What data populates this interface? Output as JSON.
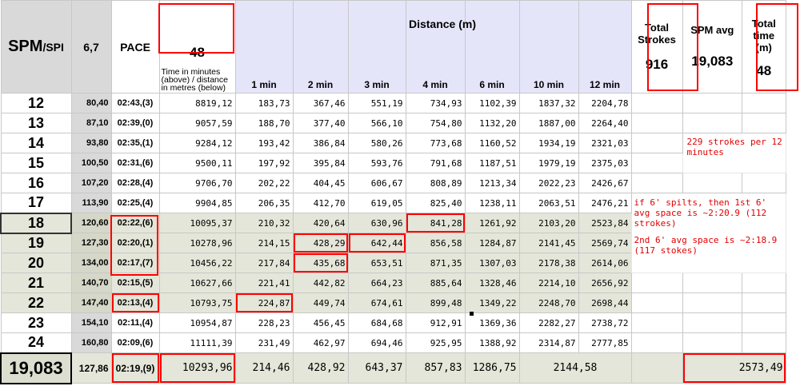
{
  "header": {
    "spm_main": "SPM",
    "spm_sub": "/SPI",
    "spi_value": "6,7",
    "pace_label": "PACE",
    "time_value": "48",
    "time_desc": "Time in minutes (above) / distance in metres (below)",
    "distance_label": "Distance (m)",
    "minutes": [
      "1 min",
      "2 min",
      "3 min",
      "4 min",
      "6 min",
      "10 min",
      "12 min"
    ],
    "total_strokes_label": "Total Strokes",
    "total_strokes_value": "916",
    "spm_avg_label": "SPM avg",
    "spm_avg_value": "19,083",
    "total_time_label": "Total time (m)",
    "total_time_value": "48"
  },
  "rows": [
    {
      "spm": "12",
      "spi": "80,40",
      "pace": "02:43,(3)",
      "total": "8819,12",
      "d": [
        "183,73",
        "367,46",
        "551,19",
        "734,93",
        "1102,39",
        "1837,32",
        "2204,78"
      ]
    },
    {
      "spm": "13",
      "spi": "87,10",
      "pace": "02:39,(0)",
      "total": "9057,59",
      "d": [
        "188,70",
        "377,40",
        "566,10",
        "754,80",
        "1132,20",
        "1887,00",
        "2264,40"
      ]
    },
    {
      "spm": "14",
      "spi": "93,80",
      "pace": "02:35,(1)",
      "total": "9284,12",
      "d": [
        "193,42",
        "386,84",
        "580,26",
        "773,68",
        "1160,52",
        "1934,19",
        "2321,03"
      ]
    },
    {
      "spm": "15",
      "spi": "100,50",
      "pace": "02:31,(6)",
      "total": "9500,11",
      "d": [
        "197,92",
        "395,84",
        "593,76",
        "791,68",
        "1187,51",
        "1979,19",
        "2375,03"
      ]
    },
    {
      "spm": "16",
      "spi": "107,20",
      "pace": "02:28,(4)",
      "total": "9706,70",
      "d": [
        "202,22",
        "404,45",
        "606,67",
        "808,89",
        "1213,34",
        "2022,23",
        "2426,67"
      ]
    },
    {
      "spm": "17",
      "spi": "113,90",
      "pace": "02:25,(4)",
      "total": "9904,85",
      "d": [
        "206,35",
        "412,70",
        "619,05",
        "825,40",
        "1238,11",
        "2063,51",
        "2476,21"
      ]
    },
    {
      "spm": "18",
      "spi": "120,60",
      "pace": "02:22,(6)",
      "total": "10095,37",
      "d": [
        "210,32",
        "420,64",
        "630,96",
        "841,28",
        "1261,92",
        "2103,20",
        "2523,84"
      ]
    },
    {
      "spm": "19",
      "spi": "127,30",
      "pace": "02:20,(1)",
      "total": "10278,96",
      "d": [
        "214,15",
        "428,29",
        "642,44",
        "856,58",
        "1284,87",
        "2141,45",
        "2569,74"
      ]
    },
    {
      "spm": "20",
      "spi": "134,00",
      "pace": "02:17,(7)",
      "total": "10456,22",
      "d": [
        "217,84",
        "435,68",
        "653,51",
        "871,35",
        "1307,03",
        "2178,38",
        "2614,06"
      ]
    },
    {
      "spm": "21",
      "spi": "140,70",
      "pace": "02:15,(5)",
      "total": "10627,66",
      "d": [
        "221,41",
        "442,82",
        "664,23",
        "885,64",
        "1328,46",
        "2214,10",
        "2656,92"
      ]
    },
    {
      "spm": "22",
      "spi": "147,40",
      "pace": "02:13,(4)",
      "total": "10793,75",
      "d": [
        "224,87",
        "449,74",
        "674,61",
        "899,48",
        "1349,22",
        "2248,70",
        "2698,44"
      ]
    },
    {
      "spm": "23",
      "spi": "154,10",
      "pace": "02:11,(4)",
      "total": "10954,87",
      "d": [
        "228,23",
        "456,45",
        "684,68",
        "912,91",
        "1369,36",
        "2282,27",
        "2738,72"
      ]
    },
    {
      "spm": "24",
      "spi": "160,80",
      "pace": "02:09,(6)",
      "total": "11111,39",
      "d": [
        "231,49",
        "462,97",
        "694,46",
        "925,95",
        "1388,92",
        "2314,87",
        "2777,85"
      ]
    }
  ],
  "notes": {
    "note1": "229 strokes per 12 minutes",
    "note2": "if 6' spilts, then 1st 6' avg space is ~2:20.9 (112 strokes)",
    "note3": "2nd 6' avg space is ~2:18.9 (117 stokes)"
  },
  "footer": {
    "spm": "19,083",
    "spi": "127,86",
    "pace": "02:19,(9)",
    "total": "10293,96",
    "d": [
      "214,46",
      "428,92",
      "643,37",
      "857,83",
      "1286,75",
      "2144,58",
      "2573,49"
    ]
  }
}
